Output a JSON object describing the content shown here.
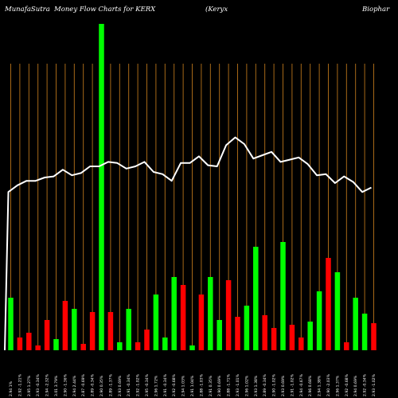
{
  "chart_data": {
    "type": "bar",
    "title": {
      "source": "MunafaSutra",
      "main": "Money Flow  Charts for KERX",
      "company_part1": "(Keryx",
      "company_part2": "Biophar"
    },
    "colors": {
      "background": "#000000",
      "grid": "#b8741a",
      "up": "#00ff00",
      "down": "#ff0000",
      "line": "#ffffff",
      "text": "#ffffff"
    },
    "grid": true,
    "bars": [
      {
        "value": 33,
        "color": "up",
        "label": "2.94 1%"
      },
      {
        "value": 8,
        "color": "down",
        "label": "2.92 -1.21%"
      },
      {
        "value": 11,
        "color": "down",
        "label": "2.95 1.27%"
      },
      {
        "value": 3,
        "color": "down",
        "label": "2.93 -0.34%"
      },
      {
        "value": 19,
        "color": "down",
        "label": "2.94 -2.32%"
      },
      {
        "value": 7,
        "color": "up",
        "label": "3.01 3.79%"
      },
      {
        "value": 31,
        "color": "down",
        "label": "2.90 -1.36%"
      },
      {
        "value": 26,
        "color": "up",
        "label": "2.94 2.44%"
      },
      {
        "value": 4,
        "color": "down",
        "label": "2.87 -0.69%"
      },
      {
        "value": 24,
        "color": "down",
        "label": "2.89 -0.34%"
      },
      {
        "value": 205,
        "color": "up",
        "label": "2.90 0.35%"
      },
      {
        "value": 24,
        "color": "down",
        "label": "2.89 -1.37%"
      },
      {
        "value": 5,
        "color": "up",
        "label": "2.93 0.69%"
      },
      {
        "value": 26,
        "color": "up",
        "label": "2.91 -0.34%"
      },
      {
        "value": 5,
        "color": "down",
        "label": "2.92 -1.02%"
      },
      {
        "value": 13,
        "color": "down",
        "label": "2.95 -0.34%"
      },
      {
        "value": 35,
        "color": "up",
        "label": "2.96 1.72%"
      },
      {
        "value": 8,
        "color": "up",
        "label": "2.91 -0.34%"
      },
      {
        "value": 46,
        "color": "up",
        "label": "2.92 -0.68%"
      },
      {
        "value": 41,
        "color": "down",
        "label": "2.94 1.03%"
      },
      {
        "value": 3,
        "color": "up",
        "label": "2.91 1.04%"
      },
      {
        "value": 35,
        "color": "down",
        "label": "2.88 -1.03%"
      },
      {
        "value": 46,
        "color": "up",
        "label": "2.91 0.35%"
      },
      {
        "value": 19,
        "color": "up",
        "label": "2.90 0.69%"
      },
      {
        "value": 44,
        "color": "down",
        "label": "2.88 -1.71%"
      },
      {
        "value": 21,
        "color": "down",
        "label": "2.93 -1.01%"
      },
      {
        "value": 28,
        "color": "up",
        "label": "2.96 1.02%"
      },
      {
        "value": 65,
        "color": "up",
        "label": "2.93 1.38%"
      },
      {
        "value": 22,
        "color": "down",
        "label": "2.89 -0.34%"
      },
      {
        "value": 14,
        "color": "down",
        "label": "2.90 -1.02%"
      },
      {
        "value": 68,
        "color": "up",
        "label": "2.93 0.69%"
      },
      {
        "value": 16,
        "color": "down",
        "label": "2.91 -1.02%"
      },
      {
        "value": 8,
        "color": "down",
        "label": "2.94 -0.67%"
      },
      {
        "value": 18,
        "color": "up",
        "label": "2.96 0.68%"
      },
      {
        "value": 37,
        "color": "up",
        "label": "2.94 1.38%"
      },
      {
        "value": 58,
        "color": "down",
        "label": "2.90 -2.03%"
      },
      {
        "value": 49,
        "color": "up",
        "label": "2.96 1.37%"
      },
      {
        "value": 5,
        "color": "down",
        "label": "2.92 -0.68%"
      },
      {
        "value": 33,
        "color": "up",
        "label": "2.94 0.69%"
      },
      {
        "value": 23,
        "color": "up",
        "label": "2.92 -0.34%"
      },
      {
        "value": 17,
        "color": "down",
        "label": "2.93 -1.02%"
      }
    ],
    "price_line": [
      142,
      148,
      152,
      152,
      155,
      156,
      162,
      157,
      159,
      165,
      165,
      169,
      168,
      163,
      165,
      169,
      160,
      158,
      152,
      168,
      168,
      174,
      166,
      165,
      184,
      191,
      185,
      172,
      175,
      178,
      169,
      171,
      173,
      167,
      157,
      158,
      150,
      156,
      151,
      142,
      146
    ]
  }
}
